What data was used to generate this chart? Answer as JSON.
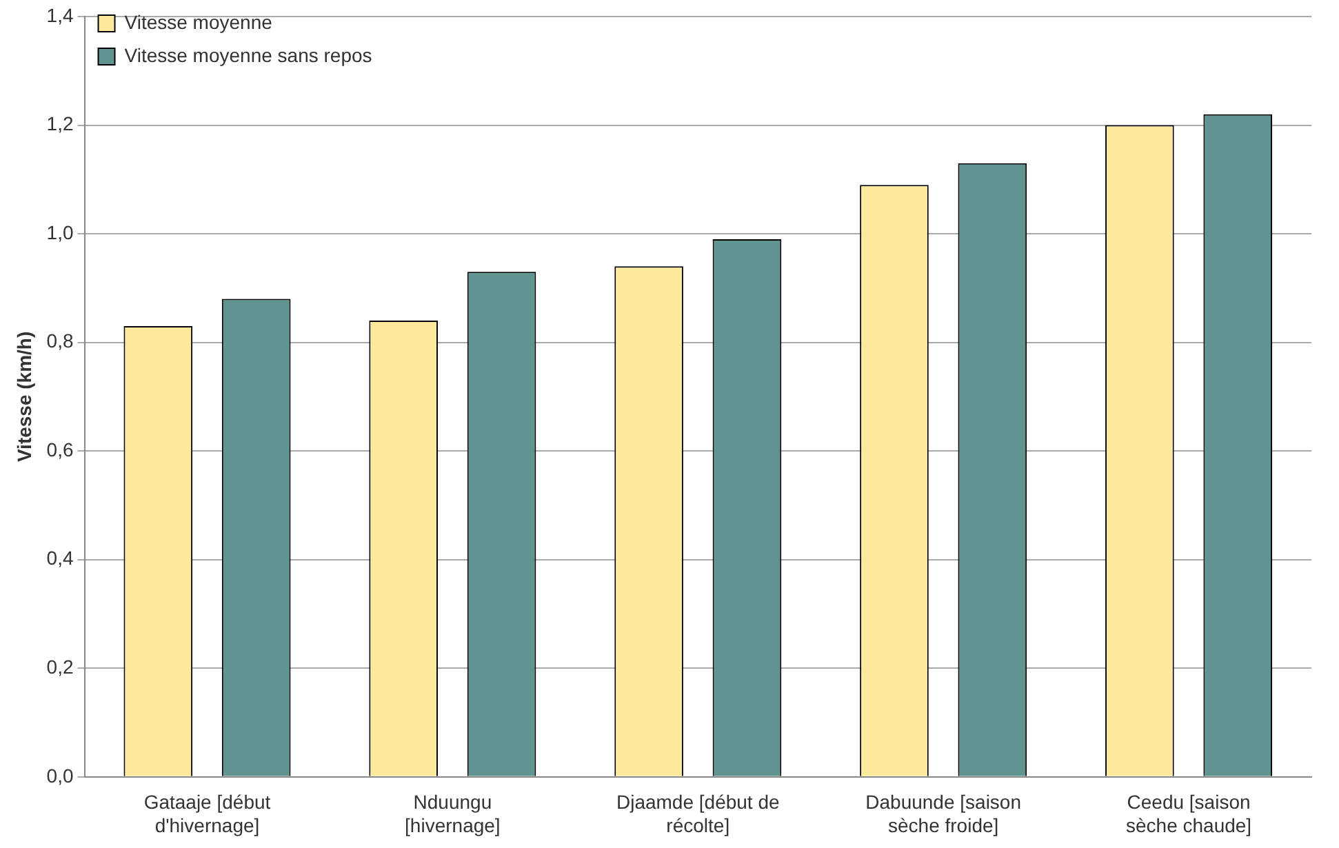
{
  "chart_data": {
    "type": "bar",
    "ylabel": "Vitesse (km/h)",
    "categories": [
      "Gataaje [début d'hivernage]",
      "Nduungu [hivernage]",
      "Djaamde [début de récolte]",
      "Dabuunde [saison sèche froide]",
      "Ceedu [saison sèche chaude]"
    ],
    "series": [
      {
        "name": "Vitesse moyenne",
        "color": "#fde99c",
        "values": [
          0.83,
          0.84,
          0.94,
          1.09,
          1.2
        ]
      },
      {
        "name": "Vitesse moyenne sans repos",
        "color": "#5f9490",
        "values": [
          0.88,
          0.93,
          0.99,
          1.13,
          1.22
        ]
      }
    ],
    "ylim": [
      0,
      1.4
    ],
    "yticks": [
      {
        "value": 0,
        "label": "0,0"
      },
      {
        "value": 0.2,
        "label": "0,2"
      },
      {
        "value": 0.4,
        "label": "0,4"
      },
      {
        "value": 0.6,
        "label": "0,6"
      },
      {
        "value": 0.8,
        "label": "0,8"
      },
      {
        "value": 1.0,
        "label": "1,0"
      },
      {
        "value": 1.2,
        "label": "1,2"
      },
      {
        "value": 1.4,
        "label": "1,4"
      }
    ],
    "grid": "y",
    "legend": "top left"
  }
}
